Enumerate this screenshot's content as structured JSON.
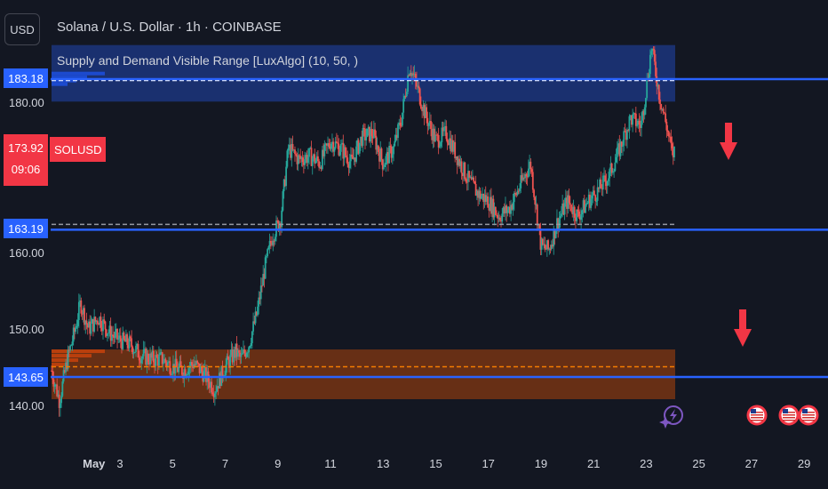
{
  "header": {
    "currency": "USD",
    "symbol_title": "Solana / U.S. Dollar · 1h · COINBASE",
    "indicator": "Supply and Demand Visible Range [LuxAlgo] (10, 50, )"
  },
  "price_tags": {
    "supply": "183.18",
    "current_price": "173.92",
    "countdown": "09:06",
    "symbol": "SOLUSD",
    "mid": "163.19",
    "demand": "143.65"
  },
  "colors": {
    "background": "#131722",
    "up": "#26a69a",
    "down": "#ef5350",
    "level_line": "#2962ff",
    "supply_zone": "#1e3a8a",
    "demand_zone": "#8b3a0f",
    "arrow": "#f23645"
  },
  "icons": [
    "lightning-icon",
    "us-flag-icon"
  ],
  "chart_data": {
    "type": "candlestick",
    "title": "Solana / U.S. Dollar · 1h · COINBASE",
    "ylim": [
      136,
      192
    ],
    "y_ticks": [
      140,
      150,
      160,
      180
    ],
    "y_tick_labels": [
      "140.00",
      "150.00",
      "160.00",
      "180.00"
    ],
    "x_tick_labels": [
      "May",
      "3",
      "5",
      "7",
      "9",
      "11",
      "13",
      "15",
      "17",
      "19",
      "21",
      "23",
      "25",
      "27",
      "29"
    ],
    "x_tick_days": [
      1,
      3,
      5,
      7,
      9,
      11,
      13,
      15,
      17,
      19,
      21,
      23,
      25,
      27,
      29
    ],
    "x_range_days": [
      0.4,
      30.0
    ],
    "last_day": 24.1,
    "levels": [
      183.18,
      163.19,
      143.65
    ],
    "supply_zone": {
      "from": 180.2,
      "to": 187.7,
      "start_day": 0.4,
      "end_day": 24.1
    },
    "demand_zone": {
      "from": 140.7,
      "to": 147.3,
      "start_day": 0.4,
      "end_day": 24.1
    },
    "dashed_levels": [
      {
        "value": 183.0,
        "color": "#ffffff"
      },
      {
        "value": 163.9,
        "color": "#9598a1"
      },
      {
        "value": 145.0,
        "color": "#f57c00"
      }
    ],
    "price_path": [
      [
        0.4,
        144.5
      ],
      [
        0.7,
        140.5
      ],
      [
        1.0,
        146.0
      ],
      [
        1.3,
        150.0
      ],
      [
        1.5,
        153.5
      ],
      [
        1.8,
        150.0
      ],
      [
        2.2,
        151.5
      ],
      [
        2.6,
        149.5
      ],
      [
        3.0,
        148.5
      ],
      [
        3.4,
        148.0
      ],
      [
        3.8,
        146.5
      ],
      [
        4.2,
        146.0
      ],
      [
        4.6,
        146.0
      ],
      [
        5.0,
        145.0
      ],
      [
        5.4,
        144.5
      ],
      [
        5.8,
        145.5
      ],
      [
        6.2,
        144.0
      ],
      [
        6.6,
        142.0
      ],
      [
        7.0,
        145.0
      ],
      [
        7.4,
        147.0
      ],
      [
        7.6,
        146.0
      ],
      [
        7.9,
        148.0
      ],
      [
        8.2,
        152.0
      ],
      [
        8.5,
        158.0
      ],
      [
        8.8,
        162.5
      ],
      [
        9.1,
        164.5
      ],
      [
        9.4,
        174.0
      ],
      [
        9.8,
        172.5
      ],
      [
        10.2,
        173.0
      ],
      [
        10.6,
        172.0
      ],
      [
        11.0,
        175.0
      ],
      [
        11.4,
        174.0
      ],
      [
        11.8,
        172.0
      ],
      [
        12.2,
        175.5
      ],
      [
        12.6,
        176.0
      ],
      [
        13.0,
        172.0
      ],
      [
        13.4,
        174.0
      ],
      [
        13.7,
        178.0
      ],
      [
        14.0,
        185.0
      ],
      [
        14.3,
        182.0
      ],
      [
        14.6,
        178.5
      ],
      [
        15.0,
        175.0
      ],
      [
        15.4,
        176.0
      ],
      [
        15.8,
        173.0
      ],
      [
        16.2,
        170.0
      ],
      [
        16.6,
        168.0
      ],
      [
        17.0,
        167.0
      ],
      [
        17.4,
        165.0
      ],
      [
        17.8,
        166.0
      ],
      [
        18.2,
        169.0
      ],
      [
        18.6,
        172.0
      ],
      [
        19.0,
        161.0
      ],
      [
        19.3,
        160.5
      ],
      [
        19.6,
        164.0
      ],
      [
        20.0,
        167.0
      ],
      [
        20.4,
        165.0
      ],
      [
        20.8,
        167.0
      ],
      [
        21.2,
        168.5
      ],
      [
        21.6,
        170.5
      ],
      [
        22.0,
        174.0
      ],
      [
        22.4,
        178.0
      ],
      [
        22.8,
        177.0
      ],
      [
        23.0,
        182.0
      ],
      [
        23.2,
        187.5
      ],
      [
        23.5,
        181.0
      ],
      [
        23.8,
        176.5
      ],
      [
        24.0,
        173.0
      ],
      [
        24.1,
        173.9
      ]
    ]
  }
}
